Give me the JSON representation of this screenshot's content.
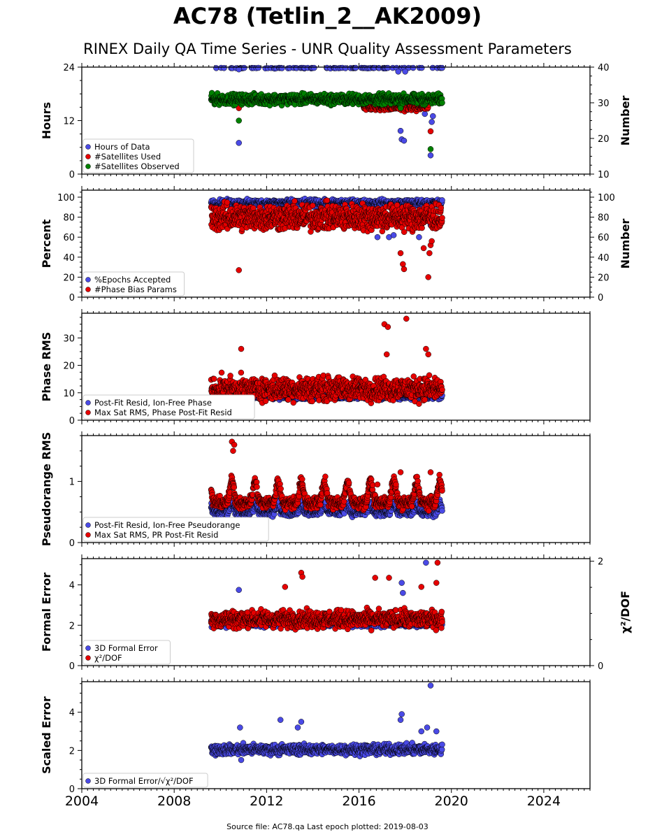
{
  "title": "AC78 (Tetlin_2__AK2009)",
  "subtitle": "RINEX Daily QA Time Series - UNR Quality Assessment Parameters",
  "footer": "Source file: AC78.qa Last epoch plotted: 2019-08-03",
  "colors": {
    "blue": "#4a4ae6",
    "red": "#e60000",
    "green": "#008000",
    "edge": "#000000"
  },
  "chart_data": [
    {
      "type": "scatter",
      "ylabel": "Hours",
      "y2label": "Number",
      "xlim": [
        2004,
        2026
      ],
      "ylim": [
        0,
        24
      ],
      "y2lim": [
        10,
        40
      ],
      "yticks": [
        "0",
        "12",
        "24"
      ],
      "y2ticks": [
        "10",
        "20",
        "30",
        "40"
      ],
      "legend_position": "lower-left",
      "legend": [
        "Hours of Data",
        "#Satellites Used",
        "#Satellites Observed"
      ],
      "series": [
        {
          "name": "Hours of Data",
          "color": "blue",
          "axis": "left",
          "x_range": [
            2009.6,
            2019.6
          ],
          "base": 24.0,
          "spread": 0.2,
          "outliers": [
            [
              2010.8,
              7.0
            ],
            [
              2017.8,
              9.7
            ],
            [
              2017.85,
              7.8
            ],
            [
              2017.95,
              7.5
            ],
            [
              2019.1,
              4.2
            ],
            [
              2019.15,
              11.7
            ],
            [
              2019.2,
              13.0
            ],
            [
              2018.85,
              13.5
            ],
            [
              2010.8,
              23.5
            ],
            [
              2017.7,
              23.0
            ],
            [
              2018.0,
              23.0
            ]
          ]
        },
        {
          "name": "#Satellites Used",
          "color": "red",
          "axis": "right",
          "x_range": [
            2016.2,
            2019.0
          ],
          "base": 29.0,
          "spread": 1.0,
          "outliers": [
            [
              2010.8,
              28.5
            ],
            [
              2019.1,
              22.0
            ],
            [
              2019.15,
              30.0
            ]
          ]
        },
        {
          "name": "#Satellites Observed",
          "color": "green",
          "axis": "right",
          "x_range": [
            2009.6,
            2019.6
          ],
          "base": 31.0,
          "spread": 1.2,
          "outliers": [
            [
              2010.8,
              25.0
            ],
            [
              2019.1,
              17.0
            ],
            [
              2017.8,
              28.5
            ]
          ]
        }
      ]
    },
    {
      "type": "scatter",
      "ylabel": "Percent",
      "y2label": "Number",
      "xlim": [
        2004,
        2026
      ],
      "ylim": [
        0,
        107
      ],
      "y2lim": [
        0,
        107
      ],
      "yticks": [
        "0",
        "20",
        "40",
        "60",
        "80",
        "100"
      ],
      "y2ticks": [
        "0",
        "20",
        "40",
        "60",
        "80",
        "100"
      ],
      "legend_position": "lower-left",
      "legend": [
        "%Epochs Accepted",
        "#Phase Bias Params"
      ],
      "series": [
        {
          "name": "%Epochs Accepted",
          "color": "blue",
          "axis": "left",
          "x_range": [
            2009.6,
            2019.6
          ],
          "base": 94.0,
          "spread": 3.0,
          "outliers": [
            [
              2016.8,
              60.0
            ],
            [
              2017.3,
              60.0
            ],
            [
              2017.5,
              62.0
            ],
            [
              2018.6,
              60.0
            ],
            [
              2019.1,
              72.0
            ]
          ]
        },
        {
          "name": "#Phase Bias Params",
          "color": "red",
          "axis": "right",
          "x_range": [
            2009.6,
            2019.6
          ],
          "base": 80.0,
          "spread": 11.0,
          "outliers": [
            [
              2010.8,
              27.0
            ],
            [
              2017.8,
              44.0
            ],
            [
              2017.9,
              33.0
            ],
            [
              2017.95,
              28.0
            ],
            [
              2019.0,
              20.0
            ],
            [
              2019.05,
              44.0
            ],
            [
              2019.1,
              52.0
            ],
            [
              2018.8,
              49.0
            ],
            [
              2019.15,
              56.0
            ]
          ]
        }
      ]
    },
    {
      "type": "scatter",
      "ylabel": "Phase RMS",
      "xlim": [
        2004,
        2026
      ],
      "ylim": [
        0,
        39
      ],
      "yticks": [
        "0",
        "10",
        "20",
        "30"
      ],
      "legend_position": "lower-left",
      "legend": [
        "Post-Fit Resid, Ion-Free Phase",
        "Max Sat RMS, Phase Post-Fit Resid"
      ],
      "series": [
        {
          "name": "Post-Fit Resid, Ion-Free Phase",
          "color": "blue",
          "axis": "left",
          "x_range": [
            2009.6,
            2019.6
          ],
          "base": 8.5,
          "spread": 0.7,
          "outliers": []
        },
        {
          "name": "Max Sat RMS, Phase Post-Fit Resid",
          "color": "red",
          "axis": "left",
          "x_range": [
            2009.6,
            2019.6
          ],
          "base": 11.5,
          "spread": 3.5,
          "outliers": [
            [
              2010.9,
              26.0
            ],
            [
              2017.1,
              35.0
            ],
            [
              2017.25,
              34.0
            ],
            [
              2018.05,
              37.0
            ],
            [
              2017.2,
              24.0
            ],
            [
              2018.9,
              26.0
            ],
            [
              2019.0,
              24.0
            ]
          ]
        }
      ]
    },
    {
      "type": "scatter",
      "ylabel": "Pseudorange RMS",
      "xlim": [
        2004,
        2026
      ],
      "ylim": [
        0,
        1.75
      ],
      "yticks": [
        "0",
        "1"
      ],
      "legend_position": "lower-left",
      "legend": [
        "Post-Fit Resid, Ion-Free Pseudorange",
        "Max Sat RMS, PR Post-Fit Resid"
      ],
      "series": [
        {
          "name": "Post-Fit Resid, Ion-Free Pseudorange",
          "color": "blue",
          "axis": "left",
          "x_range": [
            2009.6,
            2019.6
          ],
          "base": 0.5,
          "spread": 0.06,
          "seasonal": 0.12,
          "outliers": [
            [
              2009.8,
              0.7
            ],
            [
              2010.0,
              0.68
            ],
            [
              2010.3,
              0.66
            ]
          ]
        },
        {
          "name": "Max Sat RMS, PR Post-Fit Resid",
          "color": "red",
          "axis": "left",
          "x_range": [
            2009.6,
            2019.6
          ],
          "base": 0.65,
          "spread": 0.08,
          "seasonal": 0.35,
          "outliers": [
            [
              2010.5,
              1.65
            ],
            [
              2010.6,
              1.6
            ],
            [
              2010.55,
              1.5
            ],
            [
              2017.8,
              1.15
            ],
            [
              2019.1,
              1.15
            ],
            [
              2017.6,
              0.95
            ],
            [
              2016.8,
              0.95
            ]
          ]
        }
      ]
    },
    {
      "type": "scatter",
      "ylabel": "Formal Error",
      "y2label": "χ²/DOF",
      "xlim": [
        2004,
        2026
      ],
      "ylim": [
        0,
        5.3
      ],
      "y2lim": [
        0,
        2.05
      ],
      "yticks": [
        "0",
        "2",
        "4"
      ],
      "y2ticks": [
        "0",
        "2"
      ],
      "legend_position": "lower-left",
      "legend": [
        "3D Formal Error",
        "χ²/DOF"
      ],
      "series": [
        {
          "name": "3D Formal Error",
          "color": "blue",
          "axis": "left",
          "x_range": [
            2009.6,
            2019.6
          ],
          "base": 2.1,
          "spread": 0.15,
          "outliers": [
            [
              2010.8,
              3.75
            ],
            [
              2017.85,
              4.1
            ],
            [
              2018.9,
              5.1
            ],
            [
              2017.9,
              3.6
            ]
          ]
        },
        {
          "name": "χ²/DOF",
          "color": "red",
          "axis": "left",
          "x_range": [
            2009.6,
            2019.6
          ],
          "base": 2.3,
          "spread": 0.35,
          "outliers": [
            [
              2013.5,
              4.6
            ],
            [
              2013.55,
              4.4
            ],
            [
              2016.7,
              4.35
            ],
            [
              2017.3,
              4.35
            ],
            [
              2019.4,
              5.1
            ],
            [
              2019.35,
              4.1
            ],
            [
              2012.8,
              3.9
            ],
            [
              2018.7,
              3.9
            ]
          ]
        }
      ]
    },
    {
      "type": "scatter",
      "ylabel": "Scaled Error",
      "xlim": [
        2004,
        2026
      ],
      "ylim": [
        0,
        5.6
      ],
      "yticks": [
        "0",
        "2",
        "4"
      ],
      "legend_position": "lower-left",
      "legend": [
        "3D Formal Error/√χ²/DOF"
      ],
      "series": [
        {
          "name": "3D Formal Error/√χ²/DOF",
          "color": "blue",
          "axis": "left",
          "x_range": [
            2009.6,
            2019.6
          ],
          "base": 2.05,
          "spread": 0.22,
          "outliers": [
            [
              2010.85,
              3.2
            ],
            [
              2012.6,
              3.6
            ],
            [
              2013.5,
              3.5
            ],
            [
              2013.35,
              3.2
            ],
            [
              2017.85,
              3.9
            ],
            [
              2017.8,
              3.6
            ],
            [
              2018.7,
              3.0
            ],
            [
              2018.95,
              3.2
            ],
            [
              2019.1,
              5.4
            ],
            [
              2019.35,
              3.0
            ],
            [
              2010.9,
              1.5
            ]
          ]
        }
      ]
    }
  ],
  "xaxis": {
    "ticks": [
      "2004",
      "2008",
      "2012",
      "2016",
      "2020",
      "2024"
    ]
  }
}
